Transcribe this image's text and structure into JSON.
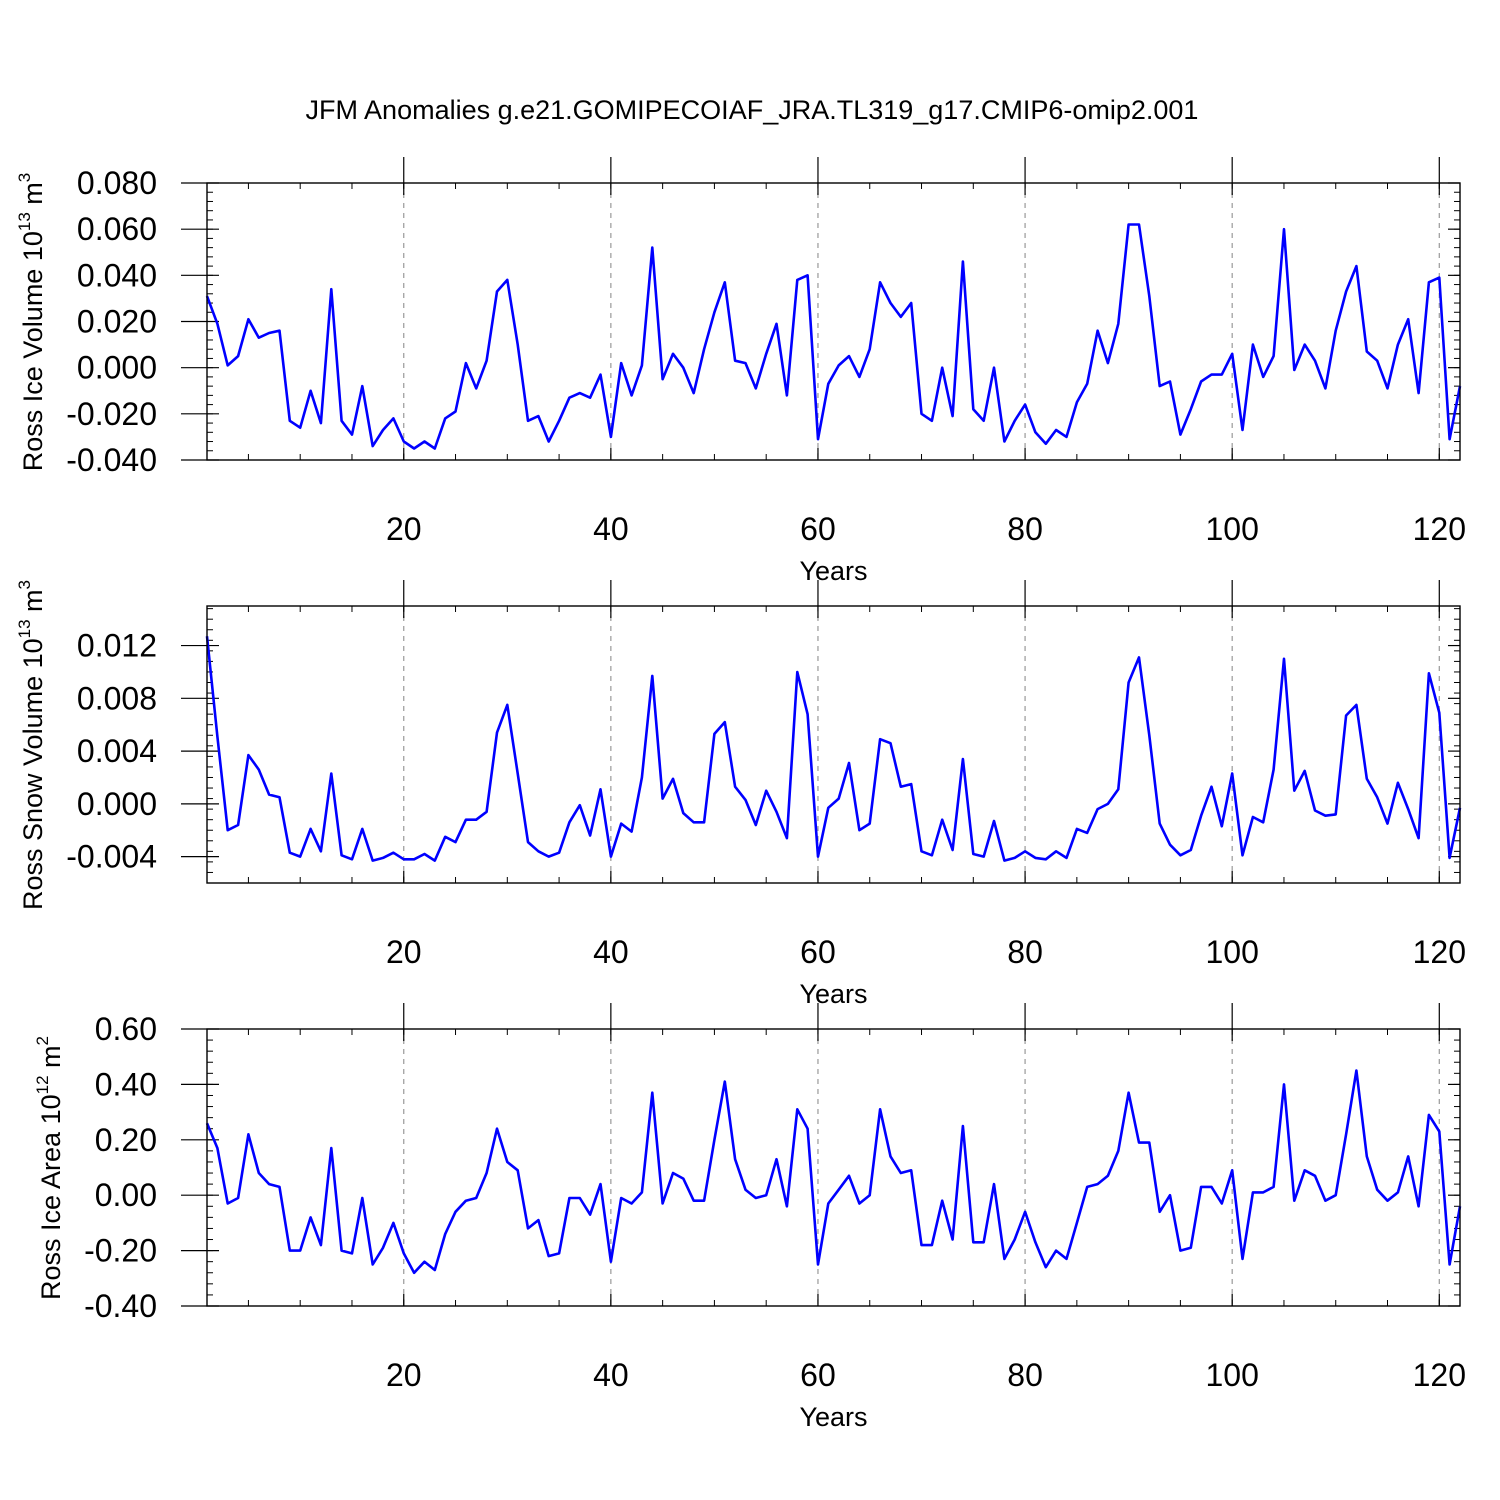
{
  "title": "JFM Anomalies g.e21.GOMIPECOIAF_JRA.TL319_g17.CMIP6-omip2.001",
  "line_color": "#0000ff",
  "grid_color": "#999999",
  "chart_data": [
    {
      "type": "line",
      "ylabel": "Ross Ice Volume 10",
      "ylabel_exp": "13",
      "ylabel_unit": " m",
      "ylabel_unit_exp": "3",
      "xlabel": "Years",
      "xlim": [
        1,
        122
      ],
      "ylim": [
        -0.04,
        0.08
      ],
      "yticks": [
        -0.04,
        -0.02,
        0.0,
        0.02,
        0.04,
        0.06,
        0.08
      ],
      "ytick_labels": [
        "-0.040",
        "-0.020",
        "0.000",
        "0.020",
        "0.040",
        "0.060",
        "0.080"
      ],
      "xticks": [
        20,
        40,
        60,
        80,
        100,
        120
      ],
      "xtick_labels": [
        "20",
        "40",
        "60",
        "80",
        "100",
        "120"
      ],
      "grid_x": [
        20,
        40,
        60,
        80,
        100,
        120
      ],
      "x_start": 1,
      "values": [
        0.031,
        0.019,
        0.001,
        0.005,
        0.021,
        0.013,
        0.015,
        0.016,
        -0.023,
        -0.026,
        -0.01,
        -0.024,
        0.034,
        -0.023,
        -0.029,
        -0.008,
        -0.034,
        -0.027,
        -0.022,
        -0.032,
        -0.035,
        -0.032,
        -0.035,
        -0.022,
        -0.019,
        0.002,
        -0.009,
        0.003,
        0.033,
        0.038,
        0.01,
        -0.023,
        -0.021,
        -0.032,
        -0.023,
        -0.013,
        -0.011,
        -0.013,
        -0.003,
        -0.03,
        0.002,
        -0.012,
        0.001,
        0.052,
        -0.005,
        0.006,
        0.0,
        -0.011,
        0.008,
        0.024,
        0.037,
        0.003,
        0.002,
        -0.009,
        0.006,
        0.019,
        -0.012,
        0.038,
        0.04,
        -0.031,
        -0.007,
        0.001,
        0.005,
        -0.004,
        0.008,
        0.037,
        0.028,
        0.022,
        0.028,
        -0.02,
        -0.023,
        0.0,
        -0.021,
        0.046,
        -0.018,
        -0.023,
        0.0,
        -0.032,
        -0.023,
        -0.016,
        -0.028,
        -0.033,
        -0.027,
        -0.03,
        -0.015,
        -0.007,
        0.016,
        0.002,
        0.019,
        0.062,
        0.062,
        0.031,
        -0.008,
        -0.006,
        -0.029,
        -0.018,
        -0.006,
        -0.003,
        -0.003,
        0.006,
        -0.027,
        0.01,
        -0.004,
        0.005,
        0.06,
        -0.001,
        0.01,
        0.003,
        -0.009,
        0.016,
        0.033,
        0.044,
        0.007,
        0.003,
        -0.009,
        0.01,
        0.021,
        -0.011,
        0.037,
        0.039,
        -0.031,
        -0.008
      ]
    },
    {
      "type": "line",
      "ylabel": "Ross Snow Volume 10",
      "ylabel_exp": "13",
      "ylabel_unit": " m",
      "ylabel_unit_exp": "3",
      "xlabel": "Years",
      "xlim": [
        1,
        122
      ],
      "ylim": [
        -0.006,
        0.015
      ],
      "yticks": [
        -0.004,
        0.0,
        0.004,
        0.008,
        0.012
      ],
      "ytick_labels": [
        "-0.004",
        "0.000",
        "0.004",
        "0.008",
        "0.012"
      ],
      "xticks": [
        20,
        40,
        60,
        80,
        100,
        120
      ],
      "xtick_labels": [
        "20",
        "40",
        "60",
        "80",
        "100",
        "120"
      ],
      "grid_x": [
        20,
        40,
        60,
        80,
        100,
        120
      ],
      "x_start": 1,
      "values": [
        0.0127,
        0.0051,
        -0.002,
        -0.0016,
        0.0037,
        0.0026,
        0.0007,
        0.0005,
        -0.0037,
        -0.004,
        -0.0019,
        -0.0036,
        0.0023,
        -0.0039,
        -0.0042,
        -0.0019,
        -0.0043,
        -0.0041,
        -0.0037,
        -0.0042,
        -0.0042,
        -0.0038,
        -0.0043,
        -0.0025,
        -0.0029,
        -0.0012,
        -0.0012,
        -0.0006,
        0.0054,
        0.0075,
        0.0023,
        -0.0029,
        -0.0036,
        -0.004,
        -0.0037,
        -0.0014,
        -0.0001,
        -0.0024,
        0.0011,
        -0.004,
        -0.0015,
        -0.0021,
        0.002,
        0.0097,
        0.0004,
        0.0019,
        -0.0007,
        -0.0014,
        -0.0014,
        0.0053,
        0.0062,
        0.0013,
        0.0003,
        -0.0016,
        0.001,
        -0.0006,
        -0.0026,
        0.01,
        0.0068,
        -0.004,
        -0.0003,
        0.0004,
        0.0031,
        -0.002,
        -0.0015,
        0.0049,
        0.0046,
        0.0013,
        0.0015,
        -0.0036,
        -0.0039,
        -0.0012,
        -0.0035,
        0.0034,
        -0.0038,
        -0.004,
        -0.0013,
        -0.0043,
        -0.0041,
        -0.0036,
        -0.0041,
        -0.0042,
        -0.0036,
        -0.0041,
        -0.0019,
        -0.0022,
        -0.0004,
        0.0,
        0.0011,
        0.0092,
        0.0111,
        0.0052,
        -0.0015,
        -0.0031,
        -0.0039,
        -0.0035,
        -0.0009,
        0.0013,
        -0.0017,
        0.0023,
        -0.0039,
        -0.001,
        -0.0014,
        0.0026,
        0.011,
        0.001,
        0.0025,
        -0.0005,
        -0.0009,
        -0.0008,
        0.0067,
        0.0075,
        0.0019,
        0.0005,
        -0.0015,
        0.0016,
        -0.0004,
        -0.0026,
        0.0099,
        0.0069,
        -0.0041,
        -0.0003
      ]
    },
    {
      "type": "line",
      "ylabel": "Ross Ice Area 10",
      "ylabel_exp": "12",
      "ylabel_unit": " m",
      "ylabel_unit_exp": "2",
      "xlabel": "Years",
      "xlim": [
        1,
        122
      ],
      "ylim": [
        -0.4,
        0.6
      ],
      "yticks": [
        -0.4,
        -0.2,
        0.0,
        0.2,
        0.4,
        0.6
      ],
      "ytick_labels": [
        "-0.40",
        "-0.20",
        "0.00",
        "0.20",
        "0.40",
        "0.60"
      ],
      "xticks": [
        20,
        40,
        60,
        80,
        100,
        120
      ],
      "xtick_labels": [
        "20",
        "40",
        "60",
        "80",
        "100",
        "120"
      ],
      "grid_x": [
        20,
        40,
        60,
        80,
        100,
        120
      ],
      "x_start": 1,
      "values": [
        0.26,
        0.17,
        -0.03,
        -0.01,
        0.22,
        0.08,
        0.04,
        0.03,
        -0.2,
        -0.2,
        -0.08,
        -0.18,
        0.17,
        -0.2,
        -0.21,
        -0.01,
        -0.25,
        -0.19,
        -0.1,
        -0.21,
        -0.28,
        -0.24,
        -0.27,
        -0.14,
        -0.06,
        -0.02,
        -0.01,
        0.08,
        0.24,
        0.12,
        0.09,
        -0.12,
        -0.09,
        -0.22,
        -0.21,
        -0.01,
        -0.01,
        -0.07,
        0.04,
        -0.24,
        -0.01,
        -0.03,
        0.01,
        0.37,
        -0.03,
        0.08,
        0.06,
        -0.02,
        -0.02,
        0.2,
        0.41,
        0.13,
        0.02,
        -0.01,
        0.0,
        0.13,
        -0.04,
        0.31,
        0.24,
        -0.25,
        -0.03,
        0.02,
        0.07,
        -0.03,
        0.0,
        0.31,
        0.14,
        0.08,
        0.09,
        -0.18,
        -0.18,
        -0.02,
        -0.16,
        0.25,
        -0.17,
        -0.17,
        0.04,
        -0.23,
        -0.16,
        -0.06,
        -0.17,
        -0.26,
        -0.2,
        -0.23,
        -0.1,
        0.03,
        0.04,
        0.07,
        0.16,
        0.37,
        0.19,
        0.19,
        -0.06,
        0.0,
        -0.2,
        -0.19,
        0.03,
        0.03,
        -0.03,
        0.09,
        -0.23,
        0.01,
        0.01,
        0.03,
        0.4,
        -0.02,
        0.09,
        0.07,
        -0.02,
        0.0,
        0.22,
        0.45,
        0.14,
        0.02,
        -0.02,
        0.01,
        0.14,
        -0.04,
        0.29,
        0.23,
        -0.25,
        -0.04
      ]
    }
  ]
}
